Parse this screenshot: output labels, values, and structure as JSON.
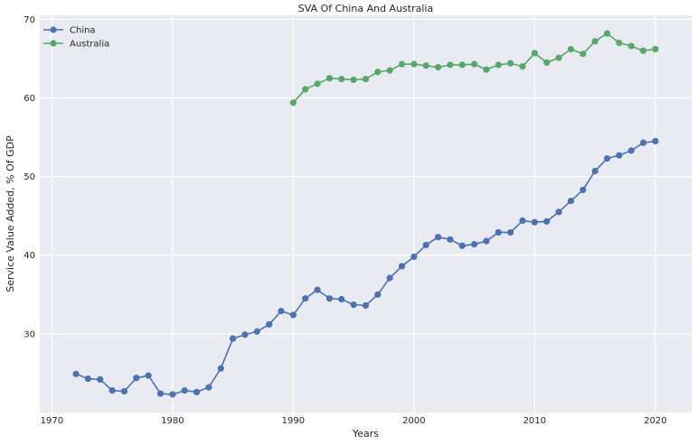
{
  "chart_data": {
    "type": "line",
    "title": "SVA Of China And Australia",
    "xlabel": "Years",
    "ylabel": "Service Value Added, % Of GDP",
    "xlim": [
      1969,
      2023
    ],
    "ylim": [
      20,
      70.5
    ],
    "xticks": [
      1970,
      1980,
      1990,
      2000,
      2010,
      2020
    ],
    "yticks": [
      30,
      40,
      50,
      60,
      70
    ],
    "grid": true,
    "legend": "top-left",
    "background": "#eaeaf2",
    "series": [
      {
        "name": "China",
        "color": "#4c72b0",
        "x": [
          1972,
          1973,
          1974,
          1975,
          1976,
          1977,
          1978,
          1979,
          1980,
          1981,
          1982,
          1983,
          1984,
          1985,
          1986,
          1987,
          1988,
          1989,
          1990,
          1991,
          1992,
          1993,
          1994,
          1995,
          1996,
          1997,
          1998,
          1999,
          2000,
          2001,
          2002,
          2003,
          2004,
          2005,
          2006,
          2007,
          2008,
          2009,
          2010,
          2011,
          2012,
          2013,
          2014,
          2015,
          2016,
          2017,
          2018,
          2019,
          2020
        ],
        "values": [
          24.9,
          24.3,
          24.2,
          22.8,
          22.7,
          24.4,
          24.7,
          22.4,
          22.3,
          22.8,
          22.6,
          23.2,
          25.6,
          29.4,
          29.9,
          30.3,
          31.2,
          32.9,
          32.4,
          34.5,
          35.6,
          34.5,
          34.4,
          33.7,
          33.6,
          35.0,
          37.1,
          38.6,
          39.8,
          41.3,
          42.3,
          42.0,
          41.2,
          41.4,
          41.8,
          42.9,
          42.9,
          44.4,
          44.2,
          44.3,
          45.5,
          46.9,
          48.3,
          50.7,
          52.3,
          52.7,
          53.3,
          54.3,
          54.5
        ]
      },
      {
        "name": "Australia",
        "color": "#55a868",
        "x": [
          1990,
          1991,
          1992,
          1993,
          1994,
          1995,
          1996,
          1997,
          1998,
          1999,
          2000,
          2001,
          2002,
          2003,
          2004,
          2005,
          2006,
          2007,
          2008,
          2009,
          2010,
          2011,
          2012,
          2013,
          2014,
          2015,
          2016,
          2017,
          2018,
          2019,
          2020
        ],
        "values": [
          59.4,
          61.1,
          61.8,
          62.5,
          62.4,
          62.3,
          62.4,
          63.3,
          63.5,
          64.3,
          64.3,
          64.1,
          63.9,
          64.2,
          64.2,
          64.3,
          63.6,
          64.2,
          64.4,
          64.0,
          65.7,
          64.5,
          65.1,
          66.2,
          65.6,
          67.2,
          68.2,
          67.0,
          66.6,
          66.0,
          66.2
        ]
      }
    ]
  }
}
